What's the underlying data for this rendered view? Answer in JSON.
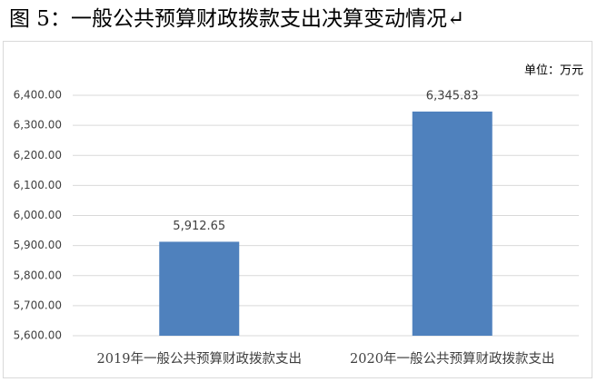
{
  "chart_data": {
    "type": "bar",
    "title": "图 5：一般公共预算财政拨款支出决算变动情况↵",
    "unit": "单位：万元",
    "categories": [
      "2019年一般公共预算财政拨款支出",
      "2020年一般公共预算财政拨款支出"
    ],
    "values": [
      5912.65,
      6345.83
    ],
    "value_labels": [
      "5,912.65",
      "6,345.83"
    ],
    "color": "#4f81bd",
    "ylim": [
      5600,
      6400
    ],
    "yticks": [
      {
        "value": 5600,
        "label": "5,600.00"
      },
      {
        "value": 5700,
        "label": "5,700.00"
      },
      {
        "value": 5800,
        "label": "5,800.00"
      },
      {
        "value": 5900,
        "label": "5,900.00"
      },
      {
        "value": 6000,
        "label": "6,000.00"
      },
      {
        "value": 6100,
        "label": "6,100.00"
      },
      {
        "value": 6200,
        "label": "6,200.00"
      },
      {
        "value": 6300,
        "label": "6,300.00"
      },
      {
        "value": 6400,
        "label": "6,400.00"
      }
    ],
    "grid": true
  }
}
